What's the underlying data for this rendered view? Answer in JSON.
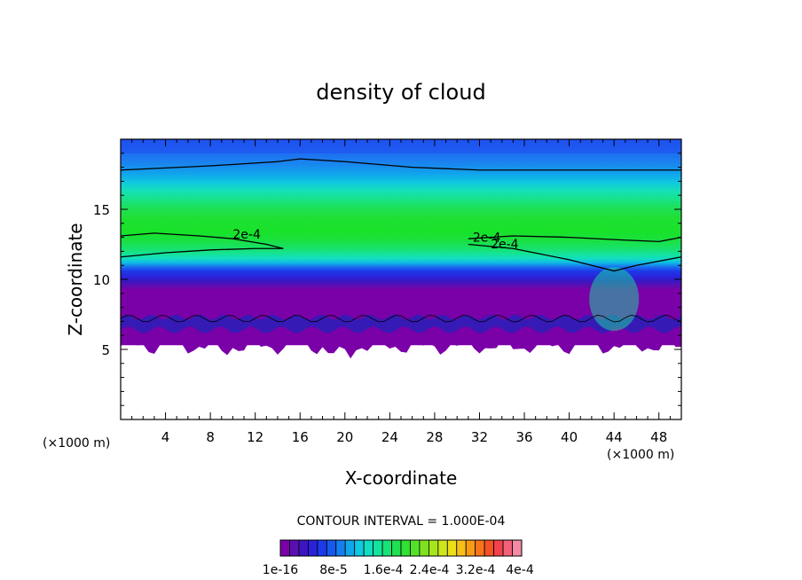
{
  "chart_data": {
    "type": "heatmap",
    "title": "density of cloud",
    "xlabel": "X-coordinate",
    "ylabel": "Z-coordinate",
    "x_unit_left": "(×1000 m)",
    "x_unit_right": "(×1000 m)",
    "xlim": [
      0,
      50
    ],
    "ylim": [
      0,
      20
    ],
    "x_ticks": [
      "4",
      "8",
      "12",
      "16",
      "20",
      "24",
      "28",
      "32",
      "36",
      "40",
      "44",
      "48"
    ],
    "y_ticks": [
      "5",
      "10",
      "15"
    ],
    "contour_interval_text": "CONTOUR INTERVAL = 1.000E-04",
    "contour_labels": [
      {
        "text": "2e-4",
        "x": 10.0,
        "z": 12.9
      },
      {
        "text": "2e-4",
        "x": 31.4,
        "z": 12.7
      },
      {
        "text": "2e-4",
        "x": 33.0,
        "z": 12.2
      }
    ],
    "contour_lines": [
      {
        "level": 0.0002,
        "points": [
          [
            0,
            13.1
          ],
          [
            3,
            13.3
          ],
          [
            7,
            13.1
          ],
          [
            10,
            12.9
          ],
          [
            13,
            12.5
          ],
          [
            14.5,
            12.2
          ]
        ]
      },
      {
        "level": 0.0002,
        "points": [
          [
            0,
            11.6
          ],
          [
            4,
            11.9
          ],
          [
            8,
            12.1
          ],
          [
            12,
            12.2
          ],
          [
            14.5,
            12.2
          ]
        ]
      },
      {
        "level": 0.0002,
        "points": [
          [
            31,
            12.9
          ],
          [
            35,
            13.1
          ],
          [
            40,
            13.0
          ],
          [
            45,
            12.8
          ],
          [
            48,
            12.7
          ],
          [
            50,
            13.0
          ]
        ]
      },
      {
        "level": 0.0002,
        "points": [
          [
            31,
            12.5
          ],
          [
            35,
            12.2
          ],
          [
            40,
            11.4
          ],
          [
            43,
            10.8
          ],
          [
            44,
            10.6
          ],
          [
            46,
            11.0
          ],
          [
            50,
            11.6
          ]
        ]
      },
      {
        "level": 0.0001,
        "points": [
          [
            0,
            17.8
          ],
          [
            8,
            18.1
          ],
          [
            14,
            18.4
          ],
          [
            16,
            18.6
          ],
          [
            20,
            18.4
          ],
          [
            26,
            18.0
          ],
          [
            32,
            17.8
          ],
          [
            40,
            17.8
          ],
          [
            50,
            17.8
          ]
        ]
      }
    ],
    "colorbar": {
      "labels": [
        "1e-16",
        "8e-5",
        "1.6e-4",
        "2.4e-4",
        "3.2e-4",
        "4e-4"
      ],
      "colors": [
        "#7a00a8",
        "#5a0fb0",
        "#3d15c2",
        "#2a22d8",
        "#1c3ae8",
        "#1659ee",
        "#147fee",
        "#10a6ec",
        "#10c8e0",
        "#12ddc2",
        "#14e39e",
        "#18e276",
        "#1ee050",
        "#30e033",
        "#55e02a",
        "#7ee223",
        "#a6e61c",
        "#cde81a",
        "#ecdf18",
        "#f7bf17",
        "#f99a16",
        "#f77419",
        "#f45225",
        "#f0434d",
        "#f2607a",
        "#f48aa4"
      ]
    },
    "field_colors": {
      "top": "#2a72f2",
      "upper": "#10a6ec",
      "mid_upper": "#14e39e",
      "core": "#18e030",
      "lower": "#14e39e",
      "base_blue": "#1c3ae8",
      "base_dark": "#2a1fb8",
      "base_purple": "#7a00a8"
    }
  }
}
